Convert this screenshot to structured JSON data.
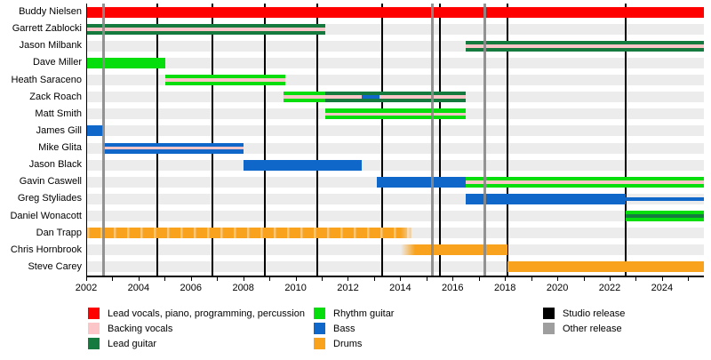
{
  "chart_data": {
    "type": "timeline",
    "description": "Band members timeline (gantt-style) with roles and release markers",
    "x_axis": {
      "start": 2002.0,
      "end": 2025.6,
      "ticks_every": 1,
      "labels": [
        2002,
        2004,
        2006,
        2008,
        2010,
        2012,
        2014,
        2016,
        2018,
        2020,
        2022,
        2024
      ]
    },
    "grid": "off",
    "row_track_color": "#ececec",
    "roles": {
      "lead-vocals": "#fe0000",
      "backing-vocals": "#fcc6c9",
      "lead-guitar": "#157a3d",
      "rhythm-guitar": "#06dd0d",
      "bass": "#0f68c9",
      "drums": "#f8a21e"
    },
    "release_colors": {
      "studio": "#000000",
      "other": "#9e9e9e"
    },
    "members": [
      {
        "name": "Buddy Nielsen",
        "bars": [
          {
            "from": 2002.0,
            "to": 2025.6,
            "role": "lead-vocals"
          }
        ]
      },
      {
        "name": "Garrett Zablocki",
        "bars": [
          {
            "from": 2002.0,
            "to": 2011.1,
            "role": "lead-guitar",
            "stripe": "backing-vocals"
          }
        ]
      },
      {
        "name": "Jason Milbank",
        "bars": [
          {
            "from": 2016.5,
            "to": 2025.6,
            "role": "lead-guitar",
            "stripe": "backing-vocals"
          }
        ]
      },
      {
        "name": "Dave Miller",
        "bars": [
          {
            "from": 2002.0,
            "to": 2005.0,
            "role": "rhythm-guitar"
          }
        ]
      },
      {
        "name": "Heath Saraceno",
        "bars": [
          {
            "from": 2005.0,
            "to": 2009.6,
            "role": "rhythm-guitar",
            "stripe": "backing-vocals"
          }
        ]
      },
      {
        "name": "Zack Roach",
        "bars": [
          {
            "from": 2009.5,
            "to": 2011.1,
            "role": "rhythm-guitar",
            "stripe": "backing-vocals"
          },
          {
            "from": 2011.1,
            "to": 2016.5,
            "role": "lead-guitar",
            "stripe": "backing-vocals"
          }
        ],
        "stripe_overlays": [
          {
            "from": 2012.5,
            "to": 2013.2,
            "role": "bass"
          }
        ]
      },
      {
        "name": "Matt Smith",
        "bars": [
          {
            "from": 2011.1,
            "to": 2016.5,
            "role": "rhythm-guitar",
            "stripe": "backing-vocals"
          }
        ]
      },
      {
        "name": "James Gill",
        "bars": [
          {
            "from": 2002.0,
            "to": 2002.6,
            "role": "bass"
          }
        ]
      },
      {
        "name": "Mike Glita",
        "bars": [
          {
            "from": 2002.6,
            "to": 2008.0,
            "role": "bass",
            "stripe": "backing-vocals"
          }
        ]
      },
      {
        "name": "Jason Black",
        "bars": [
          {
            "from": 2008.0,
            "to": 2012.5,
            "role": "bass"
          }
        ]
      },
      {
        "name": "Gavin Caswell",
        "bars": [
          {
            "from": 2013.1,
            "to": 2016.5,
            "role": "bass"
          },
          {
            "from": 2016.5,
            "to": 2025.6,
            "role": "rhythm-guitar",
            "stripe": "backing-vocals"
          }
        ]
      },
      {
        "name": "Greg Styliades",
        "bars": [
          {
            "from": 2016.5,
            "to": 2022.6,
            "role": "bass"
          },
          {
            "from": 2022.6,
            "to": 2025.6,
            "role": "bass",
            "thin": true
          }
        ]
      },
      {
        "name": "Daniel Wonacott",
        "bars": [
          {
            "from": 2022.6,
            "to": 2025.6,
            "role": "rhythm-guitar",
            "stripe": "lead-guitar"
          }
        ]
      },
      {
        "name": "Dan Trapp",
        "bars": [
          {
            "from": 2002.0,
            "to": 2014.4,
            "role": "drums",
            "dashed": true,
            "fade_right": true
          }
        ]
      },
      {
        "name": "Chris Hornbrook",
        "bars": [
          {
            "from": 2014.0,
            "to": 2018.1,
            "role": "drums",
            "fade_left": true
          }
        ]
      },
      {
        "name": "Steve Carey",
        "bars": [
          {
            "from": 2018.1,
            "to": 2025.6,
            "role": "drums"
          }
        ]
      }
    ],
    "releases": {
      "studio": [
        2004.7,
        2006.8,
        2008.8,
        2010.8,
        2013.3,
        2015.5,
        2018.1,
        2022.6
      ],
      "other": [
        2002.6,
        2015.2,
        2017.2
      ]
    },
    "legend": {
      "columns": [
        [
          {
            "label": "Lead vocals, piano, programming, percussion",
            "role": "lead-vocals"
          },
          {
            "label": "Backing vocals",
            "role": "backing-vocals"
          },
          {
            "label": "Lead guitar",
            "role": "lead-guitar"
          }
        ],
        [
          {
            "label": "Rhythm guitar",
            "role": "rhythm-guitar"
          },
          {
            "label": "Bass",
            "role": "bass"
          },
          {
            "label": "Drums",
            "role": "drums"
          }
        ],
        [
          {
            "label": "Studio release",
            "release": "studio"
          },
          {
            "label": "Other release",
            "release": "other"
          }
        ]
      ]
    }
  }
}
